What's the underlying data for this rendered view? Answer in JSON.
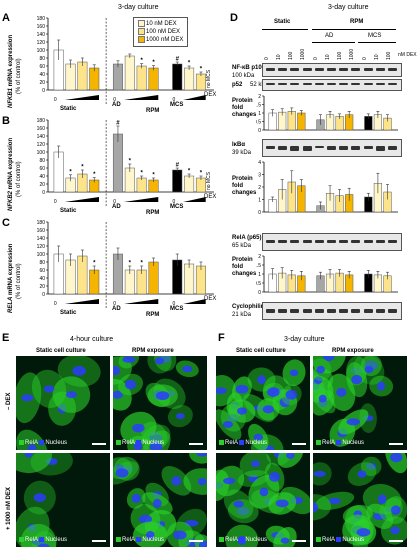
{
  "panel_letters": {
    "A": "A",
    "B": "B",
    "C": "C",
    "D": "D",
    "E": "E",
    "F": "F"
  },
  "left": {
    "culture_title": "3-day culture",
    "legend": [
      {
        "label": "10 nM DEX",
        "color": "#fff6cc"
      },
      {
        "label": "100 nM DEX",
        "color": "#fde38a"
      },
      {
        "label": "1000 nM DEX",
        "color": "#f4b400"
      }
    ],
    "dex_label": "DEX",
    "rpm_label": "RPM",
    "group_labels": [
      "Static",
      "AD",
      "MCS"
    ],
    "zero": "0",
    "no_mcs": "no MCS",
    "ylabels": {
      "A": {
        "gene": "NFKB1",
        "rest": " mRNA expression",
        "unit": "(% of control)"
      },
      "B": {
        "gene": "NFKB2",
        "rest": " mRNA expression",
        "unit": "(% of control)"
      },
      "C": {
        "gene": "RELA",
        "rest": " mRNA expression",
        "unit": "(% of control)"
      }
    },
    "y_ticks": [
      "0",
      "20",
      "40",
      "60",
      "80",
      "100",
      "120",
      "140",
      "160",
      "180"
    ]
  },
  "chart_data": [
    {
      "type": "bar",
      "panel": "A",
      "ylabel": "NFKB1 mRNA expression (% of control)",
      "ylim": [
        0,
        180
      ],
      "categories": [
        "Static 0",
        "Static 10",
        "Static 100",
        "Static 1000",
        "AD 0",
        "AD 10",
        "AD 100",
        "AD 1000",
        "MCS 0",
        "MCS 10",
        "MCS 100"
      ],
      "values": [
        100,
        65,
        70,
        55,
        65,
        85,
        60,
        55,
        65,
        55,
        40
      ],
      "errors": [
        25,
        10,
        10,
        8,
        8,
        5,
        6,
        6,
        5,
        5,
        5
      ],
      "colors": [
        "#ffffff",
        "#fff6cc",
        "#fde38a",
        "#f4b400",
        "#a6a6a6",
        "#fff6cc",
        "#fde38a",
        "#f4b400",
        "#000000",
        "#fff6cc",
        "#fde38a"
      ],
      "annotations": [
        {
          "i": 6,
          "t": "*"
        },
        {
          "i": 7,
          "t": "*"
        },
        {
          "i": 8,
          "t": "#"
        },
        {
          "i": 9,
          "t": "*"
        },
        {
          "i": 10,
          "t": "*"
        }
      ]
    },
    {
      "type": "bar",
      "panel": "B",
      "ylabel": "NFKB2 mRNA expression (% of control)",
      "ylim": [
        0,
        180
      ],
      "categories": [
        "Static 0",
        "Static 10",
        "Static 100",
        "Static 1000",
        "AD 0",
        "AD 10",
        "AD 100",
        "AD 1000",
        "MCS 0",
        "MCS 10",
        "MCS 100"
      ],
      "values": [
        100,
        35,
        45,
        30,
        145,
        60,
        35,
        30,
        55,
        40,
        35
      ],
      "errors": [
        15,
        8,
        10,
        6,
        20,
        10,
        5,
        5,
        5,
        5,
        5
      ],
      "colors": [
        "#ffffff",
        "#fff6cc",
        "#fde38a",
        "#f4b400",
        "#a6a6a6",
        "#fff6cc",
        "#fde38a",
        "#f4b400",
        "#000000",
        "#fff6cc",
        "#fde38a"
      ],
      "annotations": [
        {
          "i": 1,
          "t": "*"
        },
        {
          "i": 2,
          "t": "*"
        },
        {
          "i": 3,
          "t": "*"
        },
        {
          "i": 4,
          "t": "#"
        },
        {
          "i": 5,
          "t": "*"
        },
        {
          "i": 6,
          "t": "*"
        },
        {
          "i": 7,
          "t": "*"
        },
        {
          "i": 8,
          "t": "#"
        },
        {
          "i": 9,
          "t": "*"
        },
        {
          "i": 10,
          "t": "*"
        }
      ]
    },
    {
      "type": "bar",
      "panel": "C",
      "ylabel": "RELA mRNA expression (% of control)",
      "ylim": [
        0,
        180
      ],
      "categories": [
        "Static 0",
        "Static 10",
        "Static 100",
        "Static 1000",
        "AD 0",
        "AD 10",
        "AD 100",
        "AD 1000",
        "MCS 0",
        "MCS 10",
        "MCS 100"
      ],
      "values": [
        100,
        85,
        95,
        60,
        100,
        60,
        60,
        80,
        85,
        75,
        70
      ],
      "errors": [
        20,
        15,
        15,
        10,
        15,
        10,
        10,
        10,
        15,
        10,
        10
      ],
      "colors": [
        "#ffffff",
        "#fff6cc",
        "#fde38a",
        "#f4b400",
        "#a6a6a6",
        "#fff6cc",
        "#fde38a",
        "#f4b400",
        "#000000",
        "#fff6cc",
        "#fde38a"
      ],
      "annotations": [
        {
          "i": 3,
          "t": "*"
        },
        {
          "i": 5,
          "t": "*"
        },
        {
          "i": 6,
          "t": "*"
        }
      ]
    },
    {
      "type": "bar",
      "panel": "D-1",
      "ylabel": "Protein fold changes",
      "ylim": [
        0,
        2
      ],
      "categories": [
        "Static 0",
        "Static 10",
        "Static 100",
        "Static 1000",
        "AD 0",
        "AD 10",
        "AD 100",
        "AD 1000",
        "MCS 0",
        "MCS 10",
        "MCS 100"
      ],
      "values": [
        1,
        1.05,
        1.1,
        1.0,
        0.6,
        0.9,
        0.8,
        0.9,
        0.8,
        0.9,
        0.7
      ],
      "errors": [
        0.2,
        0.2,
        0.2,
        0.15,
        0.3,
        0.2,
        0.15,
        0.2,
        0.15,
        0.2,
        0.2
      ],
      "colors": [
        "#ffffff",
        "#fff6cc",
        "#fde38a",
        "#f4b400",
        "#a6a6a6",
        "#fff6cc",
        "#fde38a",
        "#f4b400",
        "#000000",
        "#fff6cc",
        "#fde38a"
      ]
    },
    {
      "type": "bar",
      "panel": "D-2",
      "ylabel": "Protein fold changes",
      "ylim": [
        0,
        4
      ],
      "categories": [
        "Static 0",
        "Static 10",
        "Static 100",
        "Static 1000",
        "AD 0",
        "AD 10",
        "AD 100",
        "AD 1000",
        "MCS 0",
        "MCS 10",
        "MCS 100"
      ],
      "values": [
        1,
        1.8,
        2.4,
        2.1,
        0.5,
        1.5,
        1.3,
        1.4,
        1.2,
        2.3,
        1.6
      ],
      "errors": [
        0.2,
        0.8,
        0.9,
        0.5,
        0.3,
        0.6,
        0.5,
        0.5,
        0.3,
        0.8,
        0.6
      ],
      "colors": [
        "#ffffff",
        "#fff6cc",
        "#fde38a",
        "#f4b400",
        "#a6a6a6",
        "#fff6cc",
        "#fde38a",
        "#f4b400",
        "#000000",
        "#fff6cc",
        "#fde38a"
      ]
    },
    {
      "type": "bar",
      "panel": "D-3",
      "ylabel": "Protein fold changes",
      "ylim": [
        0,
        2
      ],
      "categories": [
        "Static 0",
        "Static 10",
        "Static 100",
        "Static 1000",
        "AD 0",
        "AD 10",
        "AD 100",
        "AD 1000",
        "MCS 0",
        "MCS 10",
        "MCS 100"
      ],
      "values": [
        1,
        1.05,
        0.95,
        0.9,
        0.9,
        1.0,
        1.05,
        0.95,
        1.0,
        0.95,
        0.9
      ],
      "errors": [
        0.3,
        0.3,
        0.25,
        0.25,
        0.2,
        0.25,
        0.2,
        0.2,
        0.2,
        0.2,
        0.2
      ],
      "colors": [
        "#ffffff",
        "#fff6cc",
        "#fde38a",
        "#f4b400",
        "#a6a6a6",
        "#fff6cc",
        "#fde38a",
        "#f4b400",
        "#000000",
        "#fff6cc",
        "#fde38a"
      ]
    }
  ],
  "blot": {
    "title": "3-day culture",
    "static": "Static",
    "rpm": "RPM",
    "ad": "AD",
    "mcs": "MCS",
    "conc": [
      "0",
      "10",
      "100",
      "1000",
      "0",
      "10",
      "100",
      "1000",
      "0",
      "10",
      "100"
    ],
    "nm_dex": "nM DEX",
    "rows": [
      {
        "name": "NF-κB p100",
        "kda": "100 kDa"
      },
      {
        "name": "p52",
        "kda": "52 kDa"
      },
      {
        "name": "IκBα",
        "kda": "39 kDa"
      },
      {
        "name": "RelA (p65)",
        "kda": "65 kDa"
      },
      {
        "name": "Cyclophilin B",
        "kda": "21 kDa"
      }
    ],
    "protein_label": "Protein\nfold\nchanges"
  },
  "micro": {
    "E_title": "4-hour culture",
    "F_title": "3-day culture",
    "static_col": "Static cell culture",
    "rpm_col": "RPM exposure",
    "row1": "– DEX",
    "row2": "+ 1000 nM DEX",
    "relA": "RelA",
    "nucleus": "Nucleus",
    "green": "#2bd12b",
    "blue": "#2a3cff"
  }
}
